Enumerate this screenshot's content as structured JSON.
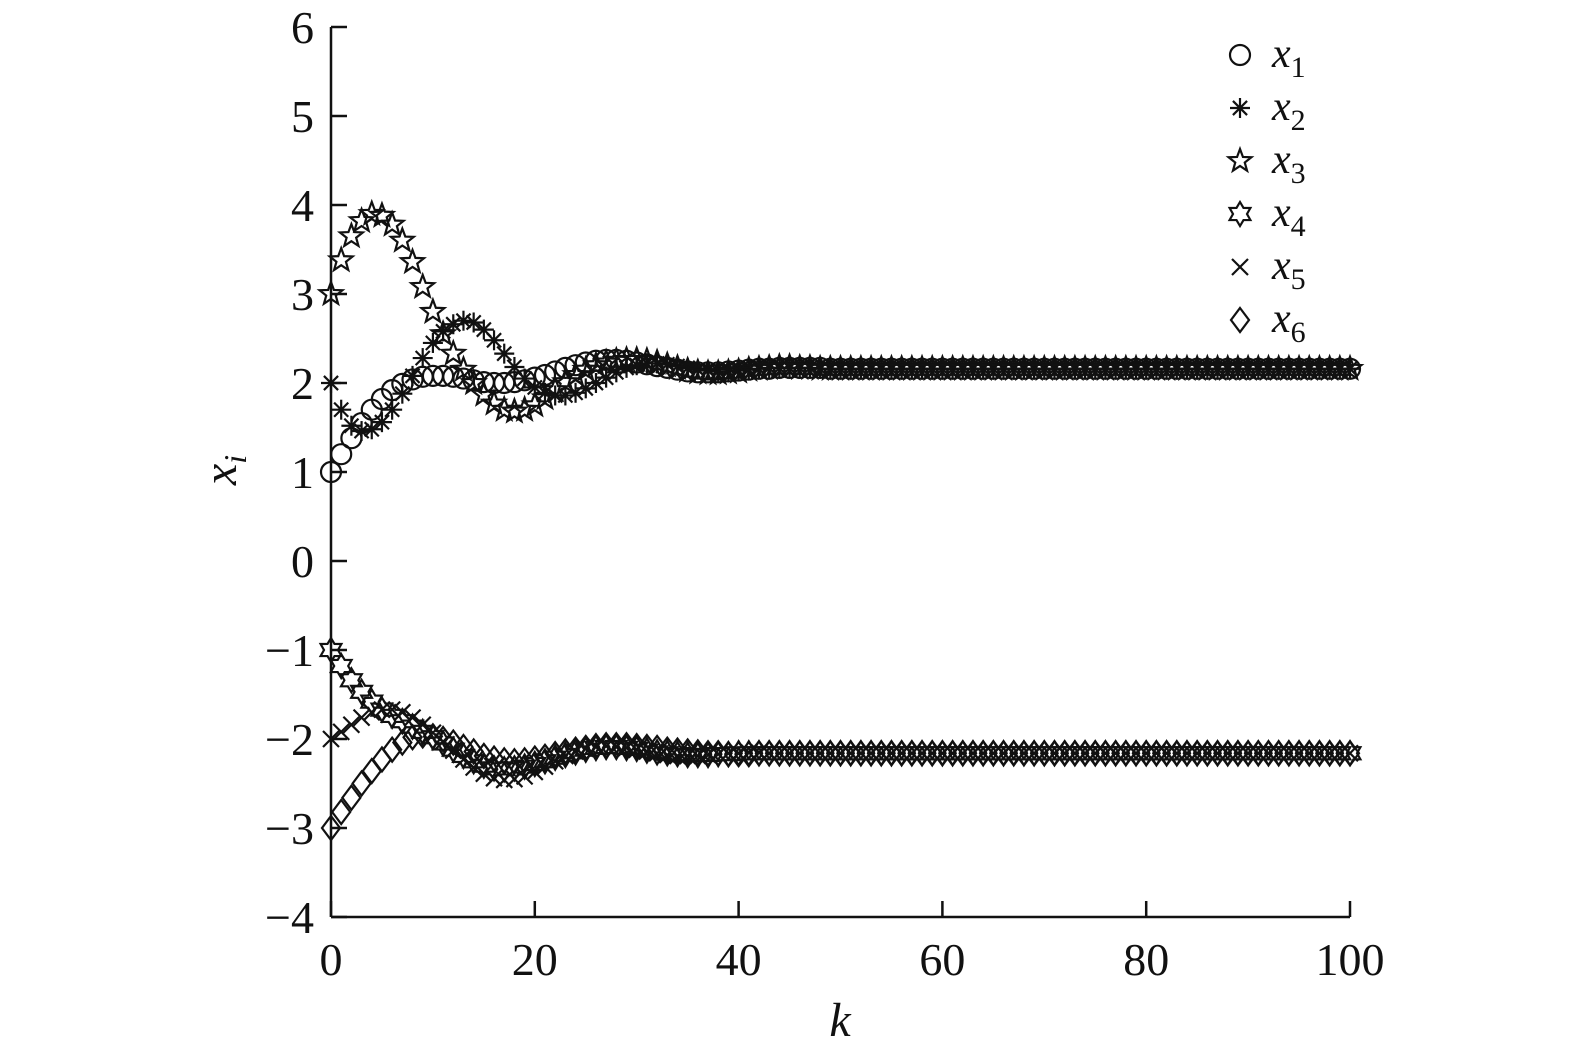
{
  "chart_data": {
    "type": "scatter",
    "title": "",
    "xlabel": "k",
    "ylabel": {
      "base": "x",
      "sub": "i"
    },
    "xlim": [
      0,
      100
    ],
    "ylim": [
      -4,
      6
    ],
    "xticks": [
      "0",
      "20",
      "40",
      "60",
      "80",
      "100"
    ],
    "yticks": [
      "−4",
      "−3",
      "−2",
      "−1",
      "0",
      "1",
      "2",
      "3",
      "4",
      "5",
      "6"
    ],
    "grid": false,
    "legend_position": "top-right",
    "x": [
      0,
      1,
      2,
      3,
      4,
      5,
      6,
      7,
      8,
      9,
      10,
      11,
      12,
      13,
      14,
      15,
      16,
      17,
      18,
      19,
      20,
      21,
      22,
      23,
      24,
      25,
      26,
      27,
      28,
      29,
      30,
      31,
      32,
      33,
      34,
      35,
      36,
      37,
      38,
      39,
      40,
      41,
      42,
      43,
      44,
      45,
      46,
      47,
      48,
      49,
      50,
      51,
      52,
      53,
      54,
      55,
      56,
      57,
      58,
      59,
      60,
      61,
      62,
      63,
      64,
      65,
      66,
      67,
      68,
      69,
      70,
      71,
      72,
      73,
      74,
      75,
      76,
      77,
      78,
      79,
      80,
      81,
      82,
      83,
      84,
      85,
      86,
      87,
      88,
      89,
      90,
      91,
      92,
      93,
      94,
      95,
      96,
      97,
      98,
      99,
      100
    ],
    "series": [
      {
        "name": "x",
        "sub": "1",
        "marker": "circle",
        "values": [
          1.0,
          1.2,
          1.38,
          1.55,
          1.7,
          1.82,
          1.92,
          1.99,
          2.04,
          2.07,
          2.08,
          2.08,
          2.07,
          2.05,
          2.03,
          2.01,
          2.0,
          2.0,
          2.01,
          2.03,
          2.06,
          2.09,
          2.13,
          2.17,
          2.2,
          2.23,
          2.25,
          2.26,
          2.26,
          2.25,
          2.23,
          2.21,
          2.19,
          2.17,
          2.15,
          2.13,
          2.12,
          2.12,
          2.12,
          2.13,
          2.14,
          2.15,
          2.16,
          2.16,
          2.17,
          2.17,
          2.17,
          2.17,
          2.17,
          2.16,
          2.16,
          2.16,
          2.16,
          2.16,
          2.16,
          2.16,
          2.16,
          2.16,
          2.16,
          2.16,
          2.16,
          2.16,
          2.16,
          2.16,
          2.16,
          2.16,
          2.16,
          2.16,
          2.16,
          2.16,
          2.16,
          2.16,
          2.16,
          2.16,
          2.16,
          2.16,
          2.16,
          2.16,
          2.16,
          2.16,
          2.16,
          2.16,
          2.16,
          2.16,
          2.16,
          2.16,
          2.16,
          2.16,
          2.16,
          2.16,
          2.16,
          2.16,
          2.16,
          2.16,
          2.16,
          2.16,
          2.16,
          2.16,
          2.16,
          2.16,
          2.16
        ]
      },
      {
        "name": "x",
        "sub": "2",
        "marker": "asterisk",
        "values": [
          2.0,
          1.7,
          1.52,
          1.46,
          1.48,
          1.56,
          1.7,
          1.88,
          2.08,
          2.28,
          2.45,
          2.58,
          2.66,
          2.7,
          2.68,
          2.6,
          2.48,
          2.33,
          2.18,
          2.05,
          1.95,
          1.89,
          1.86,
          1.86,
          1.89,
          1.94,
          2.0,
          2.06,
          2.12,
          2.17,
          2.2,
          2.22,
          2.22,
          2.21,
          2.19,
          2.17,
          2.15,
          2.14,
          2.13,
          2.13,
          2.14,
          2.15,
          2.16,
          2.17,
          2.17,
          2.17,
          2.17,
          2.17,
          2.16,
          2.16,
          2.16,
          2.16,
          2.16,
          2.16,
          2.16,
          2.16,
          2.16,
          2.16,
          2.16,
          2.16,
          2.16,
          2.16,
          2.16,
          2.16,
          2.16,
          2.16,
          2.16,
          2.16,
          2.16,
          2.16,
          2.16,
          2.16,
          2.16,
          2.16,
          2.16,
          2.16,
          2.16,
          2.16,
          2.16,
          2.16,
          2.16,
          2.16,
          2.16,
          2.16,
          2.16,
          2.16,
          2.16,
          2.16,
          2.16,
          2.16,
          2.16,
          2.16,
          2.16,
          2.16,
          2.16,
          2.16,
          2.16,
          2.16,
          2.16,
          2.16,
          2.16
        ]
      },
      {
        "name": "x",
        "sub": "3",
        "marker": "star5",
        "values": [
          3.0,
          3.38,
          3.65,
          3.82,
          3.9,
          3.88,
          3.78,
          3.6,
          3.36,
          3.08,
          2.8,
          2.55,
          2.33,
          2.15,
          2.0,
          1.87,
          1.77,
          1.7,
          1.68,
          1.7,
          1.75,
          1.83,
          1.92,
          2.01,
          2.09,
          2.15,
          2.2,
          2.23,
          2.25,
          2.26,
          2.26,
          2.25,
          2.23,
          2.2,
          2.17,
          2.14,
          2.12,
          2.11,
          2.11,
          2.12,
          2.13,
          2.15,
          2.16,
          2.17,
          2.18,
          2.18,
          2.17,
          2.17,
          2.16,
          2.16,
          2.16,
          2.16,
          2.16,
          2.16,
          2.16,
          2.16,
          2.16,
          2.16,
          2.16,
          2.16,
          2.16,
          2.16,
          2.16,
          2.16,
          2.16,
          2.16,
          2.16,
          2.16,
          2.16,
          2.16,
          2.16,
          2.16,
          2.16,
          2.16,
          2.16,
          2.16,
          2.16,
          2.16,
          2.16,
          2.16,
          2.16,
          2.16,
          2.16,
          2.16,
          2.16,
          2.16,
          2.16,
          2.16,
          2.16,
          2.16,
          2.16,
          2.16,
          2.16,
          2.16,
          2.16,
          2.16,
          2.16,
          2.16,
          2.16,
          2.16,
          2.16
        ]
      },
      {
        "name": "x",
        "sub": "4",
        "marker": "star6",
        "values": [
          -1.0,
          -1.18,
          -1.34,
          -1.47,
          -1.58,
          -1.67,
          -1.74,
          -1.8,
          -1.86,
          -1.92,
          -1.98,
          -2.05,
          -2.12,
          -2.19,
          -2.25,
          -2.3,
          -2.33,
          -2.34,
          -2.33,
          -2.31,
          -2.28,
          -2.25,
          -2.21,
          -2.18,
          -2.15,
          -2.12,
          -2.1,
          -2.09,
          -2.09,
          -2.1,
          -2.11,
          -2.13,
          -2.15,
          -2.16,
          -2.17,
          -2.18,
          -2.18,
          -2.18,
          -2.17,
          -2.17,
          -2.16,
          -2.16,
          -2.16,
          -2.16,
          -2.16,
          -2.16,
          -2.16,
          -2.16,
          -2.16,
          -2.16,
          -2.16,
          -2.16,
          -2.16,
          -2.16,
          -2.16,
          -2.16,
          -2.16,
          -2.16,
          -2.16,
          -2.16,
          -2.16,
          -2.16,
          -2.16,
          -2.16,
          -2.16,
          -2.16,
          -2.16,
          -2.16,
          -2.16,
          -2.16,
          -2.16,
          -2.16,
          -2.16,
          -2.16,
          -2.16,
          -2.16,
          -2.16,
          -2.16,
          -2.16,
          -2.16,
          -2.16,
          -2.16,
          -2.16,
          -2.16,
          -2.16,
          -2.16,
          -2.16,
          -2.16,
          -2.16,
          -2.16,
          -2.16,
          -2.16,
          -2.16,
          -2.16,
          -2.16,
          -2.16,
          -2.16,
          -2.16,
          -2.16,
          -2.16,
          -2.16
        ]
      },
      {
        "name": "x",
        "sub": "5",
        "marker": "cross",
        "values": [
          -2.0,
          -1.92,
          -1.84,
          -1.76,
          -1.7,
          -1.67,
          -1.67,
          -1.7,
          -1.76,
          -1.84,
          -1.93,
          -2.03,
          -2.13,
          -2.23,
          -2.32,
          -2.39,
          -2.44,
          -2.46,
          -2.45,
          -2.42,
          -2.37,
          -2.31,
          -2.25,
          -2.19,
          -2.14,
          -2.11,
          -2.09,
          -2.08,
          -2.09,
          -2.1,
          -2.12,
          -2.14,
          -2.16,
          -2.18,
          -2.19,
          -2.19,
          -2.19,
          -2.18,
          -2.17,
          -2.16,
          -2.16,
          -2.15,
          -2.15,
          -2.16,
          -2.16,
          -2.16,
          -2.16,
          -2.16,
          -2.16,
          -2.16,
          -2.16,
          -2.16,
          -2.16,
          -2.16,
          -2.16,
          -2.16,
          -2.16,
          -2.16,
          -2.16,
          -2.16,
          -2.16,
          -2.16,
          -2.16,
          -2.16,
          -2.16,
          -2.16,
          -2.16,
          -2.16,
          -2.16,
          -2.16,
          -2.16,
          -2.16,
          -2.16,
          -2.16,
          -2.16,
          -2.16,
          -2.16,
          -2.16,
          -2.16,
          -2.16,
          -2.16,
          -2.16,
          -2.16,
          -2.16,
          -2.16,
          -2.16,
          -2.16,
          -2.16,
          -2.16,
          -2.16,
          -2.16,
          -2.16,
          -2.16,
          -2.16,
          -2.16,
          -2.16,
          -2.16,
          -2.16,
          -2.16,
          -2.16,
          -2.16
        ]
      },
      {
        "name": "x",
        "sub": "6",
        "marker": "diamond",
        "values": [
          -3.0,
          -2.82,
          -2.66,
          -2.5,
          -2.36,
          -2.23,
          -2.12,
          -2.04,
          -1.98,
          -1.96,
          -1.97,
          -2.0,
          -2.04,
          -2.09,
          -2.14,
          -2.19,
          -2.22,
          -2.24,
          -2.25,
          -2.24,
          -2.22,
          -2.2,
          -2.17,
          -2.14,
          -2.12,
          -2.1,
          -2.08,
          -2.07,
          -2.07,
          -2.07,
          -2.08,
          -2.09,
          -2.1,
          -2.12,
          -2.13,
          -2.14,
          -2.15,
          -2.16,
          -2.16,
          -2.17,
          -2.17,
          -2.17,
          -2.16,
          -2.16,
          -2.16,
          -2.16,
          -2.16,
          -2.16,
          -2.16,
          -2.16,
          -2.16,
          -2.16,
          -2.16,
          -2.16,
          -2.16,
          -2.16,
          -2.16,
          -2.16,
          -2.16,
          -2.16,
          -2.16,
          -2.16,
          -2.16,
          -2.16,
          -2.16,
          -2.16,
          -2.16,
          -2.16,
          -2.16,
          -2.16,
          -2.16,
          -2.16,
          -2.16,
          -2.16,
          -2.16,
          -2.16,
          -2.16,
          -2.16,
          -2.16,
          -2.16,
          -2.16,
          -2.16,
          -2.16,
          -2.16,
          -2.16,
          -2.16,
          -2.16,
          -2.16,
          -2.16,
          -2.16,
          -2.16,
          -2.16,
          -2.16,
          -2.16,
          -2.16,
          -2.16,
          -2.16,
          -2.16,
          -2.16,
          -2.16,
          -2.16
        ]
      }
    ]
  }
}
